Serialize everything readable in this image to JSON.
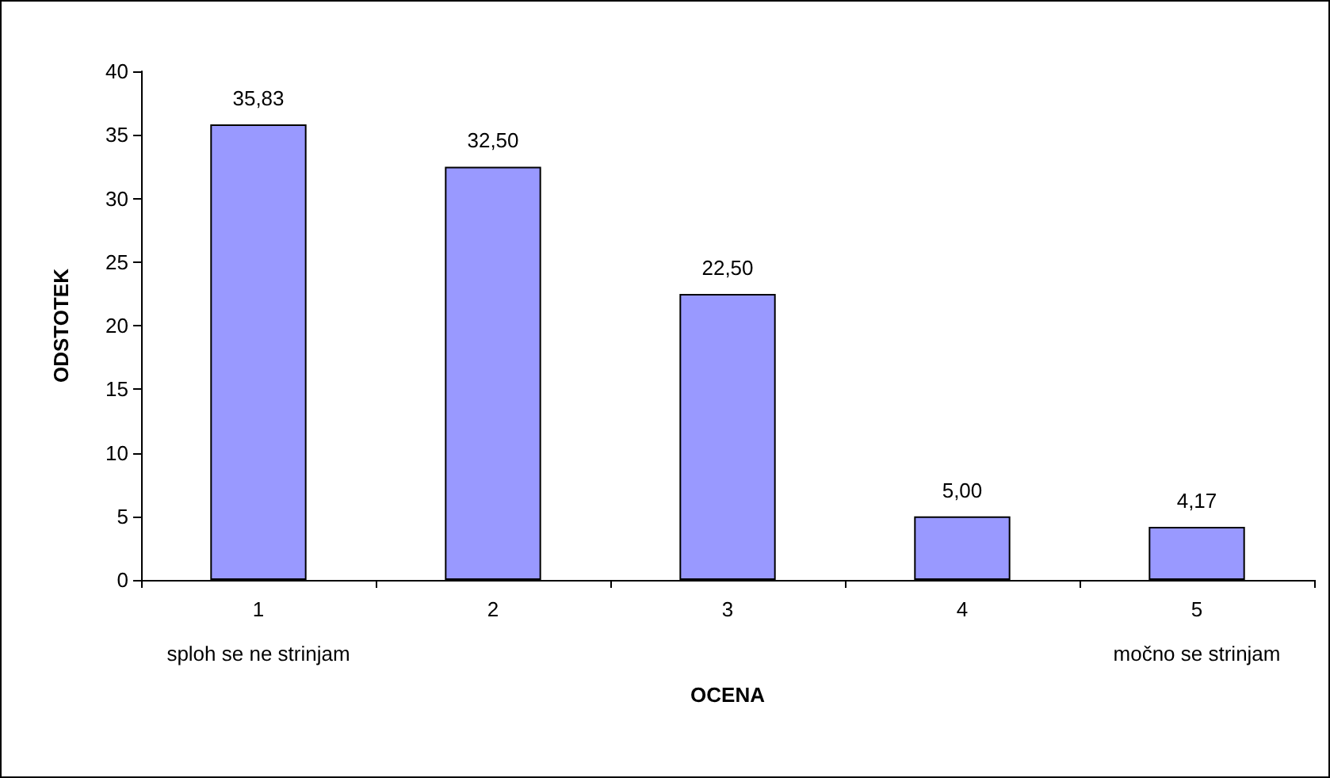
{
  "chart_data": {
    "type": "bar",
    "xlabel": "OCENA",
    "ylabel": "ODSTOTEK",
    "categories": [
      "1",
      "2",
      "3",
      "4",
      "5"
    ],
    "values": [
      35.83,
      32.5,
      22.5,
      5.0,
      4.17
    ],
    "value_labels": [
      "35,83",
      "32,50",
      "22,50",
      "5,00",
      "4,17"
    ],
    "color": "#9999ff",
    "ylim": [
      0,
      40
    ],
    "yticks": [
      0,
      5,
      10,
      15,
      20,
      25,
      30,
      35,
      40
    ],
    "grid": false,
    "annotations": [
      "sploh se ne strinjam",
      "močno se strinjam"
    ]
  }
}
